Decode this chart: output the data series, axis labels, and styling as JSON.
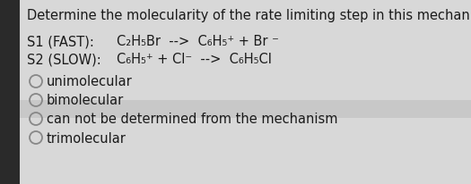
{
  "title": "Determine the molecularity of the rate limiting step in this mechanism:",
  "background_color": "#d8d8d8",
  "left_strip_color": "#2a2a2a",
  "content_bg": "#d8d8d8",
  "highlight_color": "#c8c8c8",
  "text_color": "#1a1a1a",
  "title_fontsize": 10.5,
  "content_fontsize": 10.5,
  "s1_label": "S1 (FAST):",
  "s1_equation": "C₂H₅Br  -->  C₆H₅⁺ + Br ⁻",
  "s2_label": "S2 (SLOW):",
  "s2_equation": "C₆H₅⁺ + Cl⁻  -->  C₆H₅Cl",
  "options": [
    "unimolecular",
    "bimolecular",
    "can not be determined from the mechanism",
    "trimolecular"
  ],
  "circle_color": "#888888",
  "option3_highlight": true
}
